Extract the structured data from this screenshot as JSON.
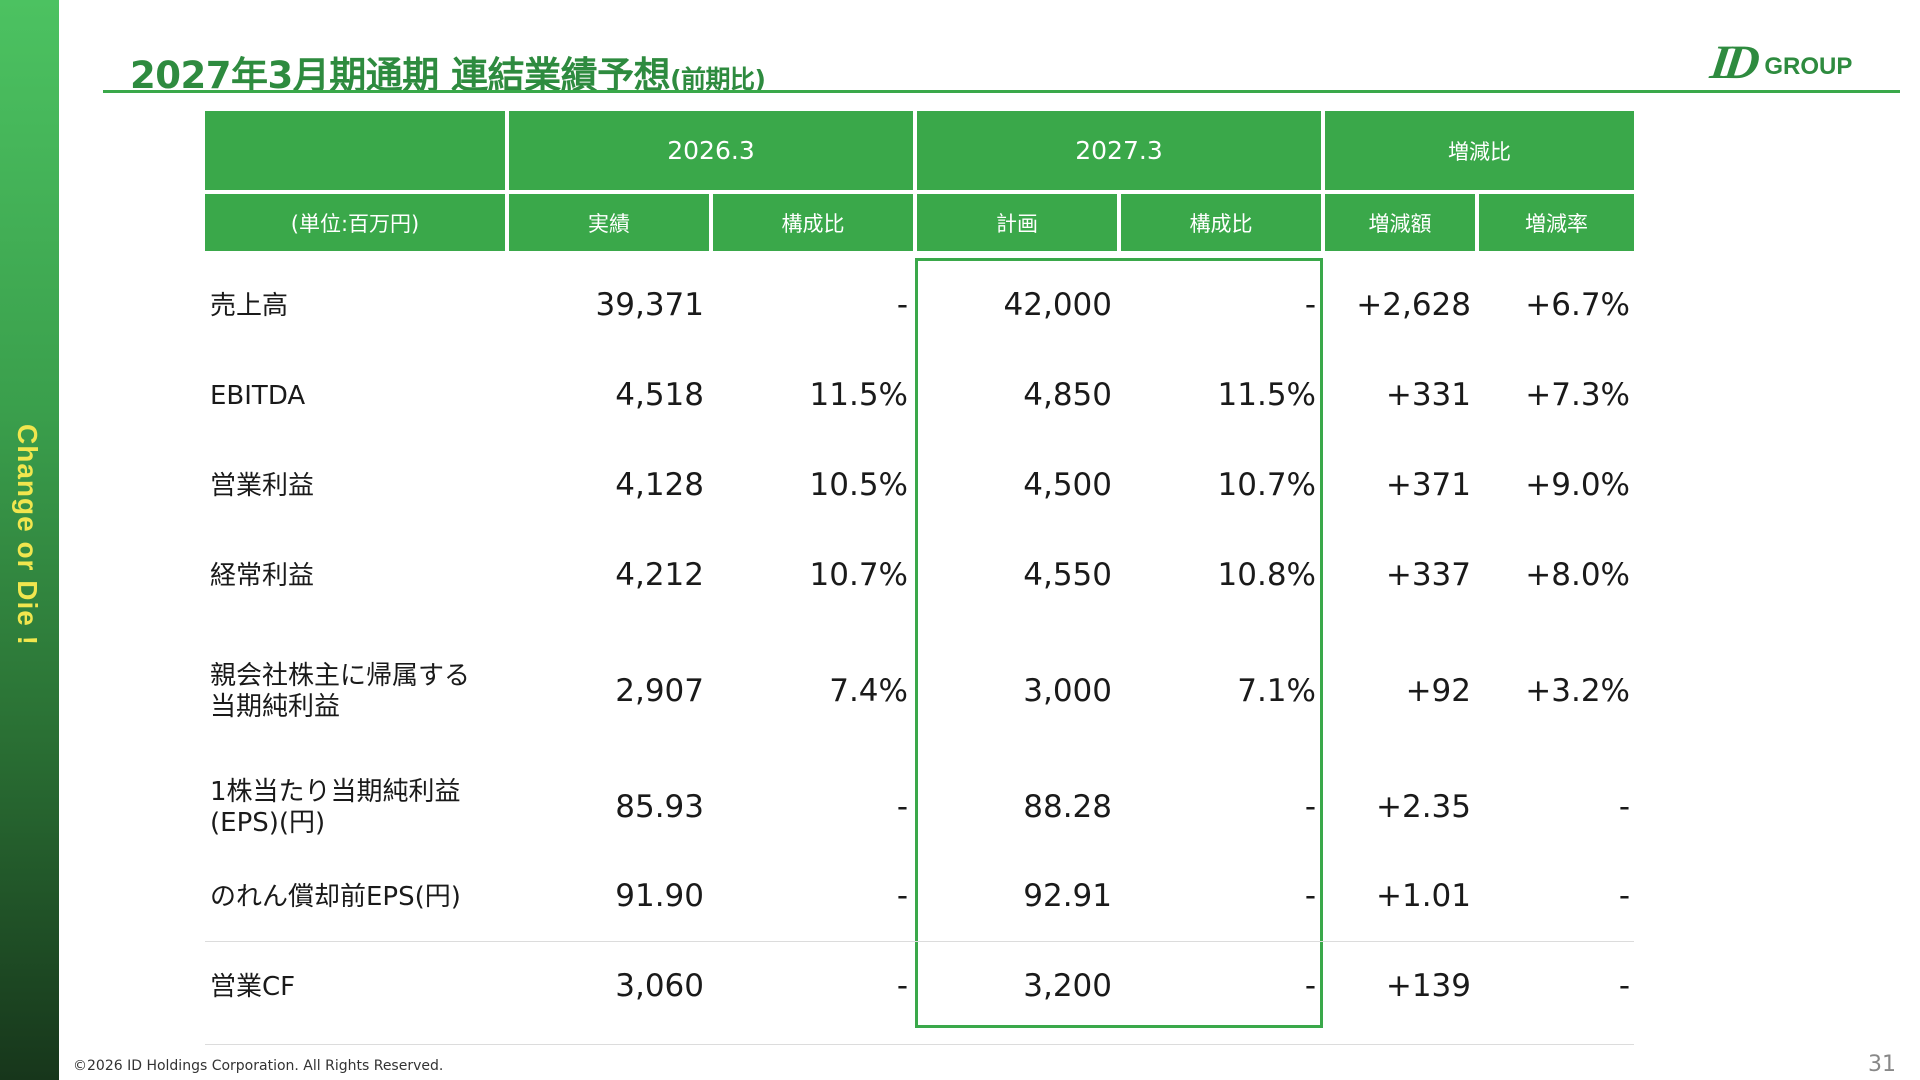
{
  "sidebar": {
    "tagline": "Change or Die !"
  },
  "title": {
    "main": "2027年3月期通期 連結業績予想",
    "sub": "(前期比)"
  },
  "logo": {
    "mark": "ID",
    "text": "GROUP"
  },
  "table": {
    "header": {
      "period_prev": "2026.3",
      "period_plan": "2027.3",
      "change": "増減比",
      "unit": "(単位:百万円)",
      "actual": "実績",
      "ratio_prev": "構成比",
      "plan": "計画",
      "ratio_plan": "構成比",
      "change_amount": "増減額",
      "change_rate": "増減率"
    },
    "rows": [
      {
        "label1": "売上高",
        "label2": "",
        "actual": "39,371",
        "ratio_prev": "-",
        "plan": "42,000",
        "ratio_plan": "-",
        "amount": "+2,628",
        "rate": "+6.7%"
      },
      {
        "label1": "EBITDA",
        "label2": "",
        "actual": "4,518",
        "ratio_prev": "11.5%",
        "plan": "4,850",
        "ratio_plan": "11.5%",
        "amount": "+331",
        "rate": "+7.3%"
      },
      {
        "label1": "営業利益",
        "label2": "",
        "actual": "4,128",
        "ratio_prev": "10.5%",
        "plan": "4,500",
        "ratio_plan": "10.7%",
        "amount": "+371",
        "rate": "+9.0%"
      },
      {
        "label1": "経常利益",
        "label2": "",
        "actual": "4,212",
        "ratio_prev": "10.7%",
        "plan": "4,550",
        "ratio_plan": "10.8%",
        "amount": "+337",
        "rate": "+8.0%"
      },
      {
        "label1": "親会社株主に帰属する",
        "label2": "当期純利益",
        "actual": "2,907",
        "ratio_prev": "7.4%",
        "plan": "3,000",
        "ratio_plan": "7.1%",
        "amount": "+92",
        "rate": "+3.2%"
      },
      {
        "label1": "1株当たり当期純利益",
        "label2": "(EPS)(円)",
        "actual": "85.93",
        "ratio_prev": "-",
        "plan": "88.28",
        "ratio_plan": "-",
        "amount": "+2.35",
        "rate": "-"
      },
      {
        "label1": "のれん償却前EPS(円)",
        "label2": "",
        "actual": "91.90",
        "ratio_prev": "-",
        "plan": "92.91",
        "ratio_plan": "-",
        "amount": "+1.01",
        "rate": "-"
      },
      {
        "label1": "営業CF",
        "label2": "",
        "actual": "3,060",
        "ratio_prev": "-",
        "plan": "3,200",
        "ratio_plan": "-",
        "amount": "+139",
        "rate": "-"
      }
    ]
  },
  "footer": {
    "copyright": "©2026 ID Holdings Corporation. All Rights Reserved.",
    "page": "31"
  },
  "colors": {
    "accent": "#3aa84a",
    "tagline": "#f1e64e",
    "title": "#2e8b3f"
  }
}
